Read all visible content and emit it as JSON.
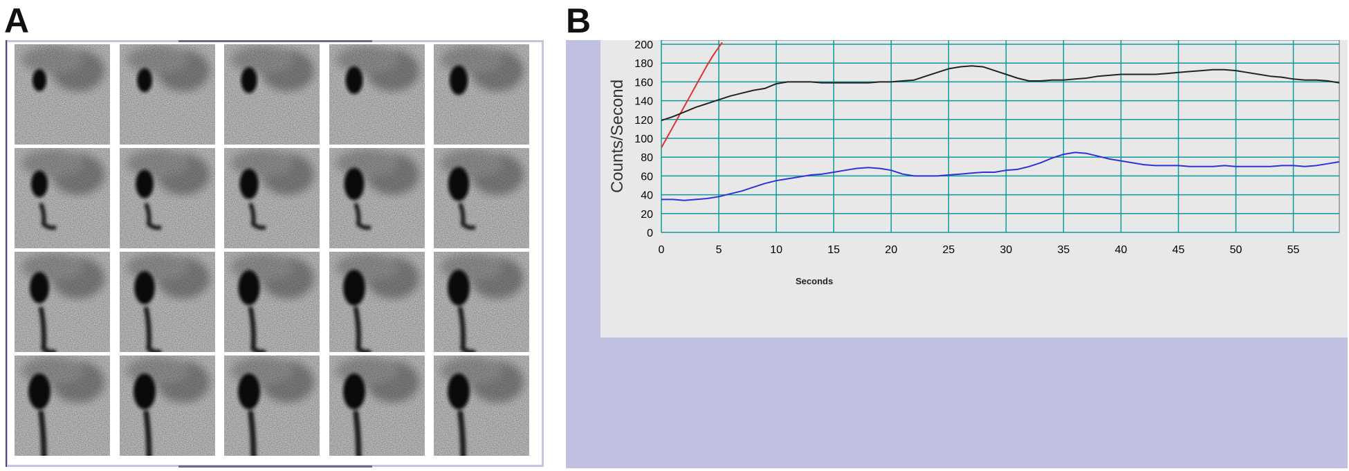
{
  "panels": {
    "a_label": "A",
    "b_label": "B"
  },
  "scan_panel": {
    "rows": 4,
    "cols": 5
  },
  "chart_data": {
    "type": "line",
    "title": "",
    "xlabel": "Seconds",
    "ylabel": "Counts/Second",
    "xlim": [
      0,
      59
    ],
    "ylim": [
      0,
      200
    ],
    "xticks": [
      0,
      5,
      10,
      15,
      20,
      25,
      30,
      35,
      40,
      45,
      50,
      55
    ],
    "yticks": [
      0,
      20,
      40,
      60,
      80,
      100,
      120,
      140,
      160,
      180,
      200
    ],
    "grid": true,
    "grid_color": "#0a9a9a",
    "plot_background": "#e8e8e8",
    "frame_background": "#c0c0e0",
    "series": [
      {
        "color": "#e03030",
        "x": [
          0,
          0.5,
          1,
          1.5,
          2,
          2.5,
          3,
          3.5,
          4,
          4.5,
          5,
          5.3
        ],
        "y": [
          90,
          101,
          112,
          123,
          134,
          145,
          156,
          167,
          178,
          188,
          197,
          202
        ]
      },
      {
        "color": "#222222",
        "x": [
          0,
          1,
          2,
          3,
          4,
          5,
          6,
          7,
          8,
          9,
          10,
          11,
          12,
          13,
          14,
          15,
          16,
          17,
          18,
          19,
          20,
          21,
          22,
          23,
          24,
          25,
          26,
          27,
          28,
          29,
          30,
          31,
          32,
          33,
          34,
          35,
          36,
          37,
          38,
          39,
          40,
          41,
          42,
          43,
          44,
          45,
          46,
          47,
          48,
          49,
          50,
          51,
          52,
          53,
          54,
          55,
          56,
          57,
          58,
          59
        ],
        "y": [
          119,
          123,
          128,
          133,
          137,
          141,
          145,
          148,
          151,
          153,
          158,
          160,
          160,
          160,
          159,
          159,
          159,
          159,
          159,
          160,
          160,
          161,
          162,
          166,
          170,
          174,
          176,
          177,
          176,
          172,
          168,
          164,
          161,
          161,
          162,
          162,
          163,
          164,
          166,
          167,
          168,
          168,
          168,
          168,
          169,
          170,
          171,
          172,
          173,
          173,
          172,
          170,
          168,
          166,
          165,
          163,
          162,
          162,
          161,
          159
        ]
      },
      {
        "color": "#3030d8",
        "x": [
          0,
          1,
          2,
          3,
          4,
          5,
          6,
          7,
          8,
          9,
          10,
          11,
          12,
          13,
          14,
          15,
          16,
          17,
          18,
          19,
          20,
          21,
          22,
          23,
          24,
          25,
          26,
          27,
          28,
          29,
          30,
          31,
          32,
          33,
          34,
          35,
          36,
          37,
          38,
          39,
          40,
          41,
          42,
          43,
          44,
          45,
          46,
          47,
          48,
          49,
          50,
          51,
          52,
          53,
          54,
          55,
          56,
          57,
          58,
          59
        ],
        "y": [
          35,
          35,
          34,
          35,
          36,
          38,
          41,
          44,
          48,
          52,
          55,
          57,
          59,
          61,
          62,
          64,
          66,
          68,
          69,
          68,
          66,
          62,
          60,
          60,
          60,
          61,
          62,
          63,
          64,
          64,
          66,
          67,
          70,
          74,
          79,
          83,
          85,
          84,
          81,
          78,
          76,
          74,
          72,
          71,
          71,
          71,
          70,
          70,
          70,
          71,
          70,
          70,
          70,
          70,
          71,
          71,
          70,
          71,
          73,
          75
        ]
      }
    ]
  }
}
